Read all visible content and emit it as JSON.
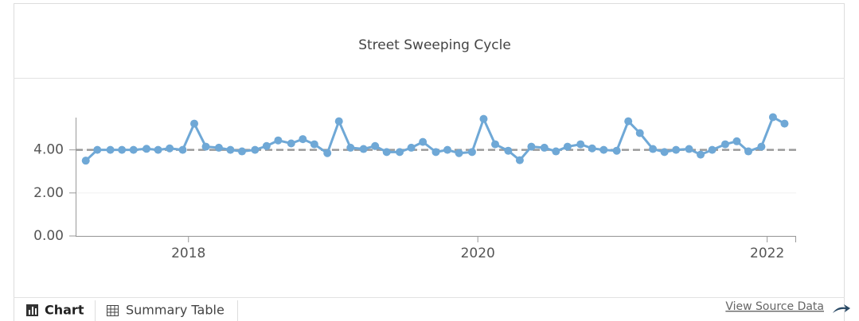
{
  "chart_data": {
    "type": "line",
    "title": "Street Sweeping Cycle",
    "x": [
      2017.29,
      2017.37,
      2017.46,
      2017.54,
      2017.62,
      2017.71,
      2017.79,
      2017.87,
      2017.96,
      2018.04,
      2018.12,
      2018.21,
      2018.29,
      2018.37,
      2018.46,
      2018.54,
      2018.62,
      2018.71,
      2018.79,
      2018.87,
      2018.96,
      2019.04,
      2019.12,
      2019.21,
      2019.29,
      2019.37,
      2019.46,
      2019.54,
      2019.62,
      2019.71,
      2019.79,
      2019.87,
      2019.96,
      2020.04,
      2020.12,
      2020.21,
      2020.29,
      2020.37,
      2020.46,
      2020.54,
      2020.62,
      2020.71,
      2020.79,
      2020.87,
      2020.96,
      2021.04,
      2021.12,
      2021.21,
      2021.29,
      2021.37,
      2021.46,
      2021.54,
      2021.62,
      2021.71,
      2021.79,
      2021.87,
      2021.96,
      2022.04,
      2022.12
    ],
    "values": [
      3.5,
      4.0,
      4.0,
      4.0,
      4.0,
      4.05,
      4.0,
      4.07,
      4.0,
      5.22,
      4.15,
      4.1,
      4.0,
      3.93,
      4.0,
      4.18,
      4.44,
      4.3,
      4.5,
      4.26,
      3.85,
      5.33,
      4.1,
      4.04,
      4.18,
      3.9,
      3.9,
      4.1,
      4.37,
      3.9,
      4.0,
      3.85,
      3.9,
      5.44,
      4.26,
      3.96,
      3.52,
      4.15,
      4.1,
      3.93,
      4.15,
      4.26,
      4.07,
      4.0,
      3.96,
      5.33,
      4.78,
      4.04,
      3.9,
      4.0,
      4.04,
      3.78,
      4.0,
      4.26,
      4.4,
      3.93,
      4.15,
      5.52,
      5.22
    ],
    "color": "#6fa8d6",
    "xlim": [
      2017.22,
      2022.2
    ],
    "xticks": [
      2018,
      2020,
      2022
    ],
    "ylim": [
      0,
      5.5
    ],
    "yticks": [
      {
        "value": 0,
        "label": "0.00"
      },
      {
        "value": 2,
        "label": "2.00"
      },
      {
        "value": 4,
        "label": "4.00"
      }
    ],
    "reference_line": 4,
    "grid": true
  },
  "tabs": [
    "Chart",
    "Summary Table"
  ],
  "link": "View Source Data"
}
